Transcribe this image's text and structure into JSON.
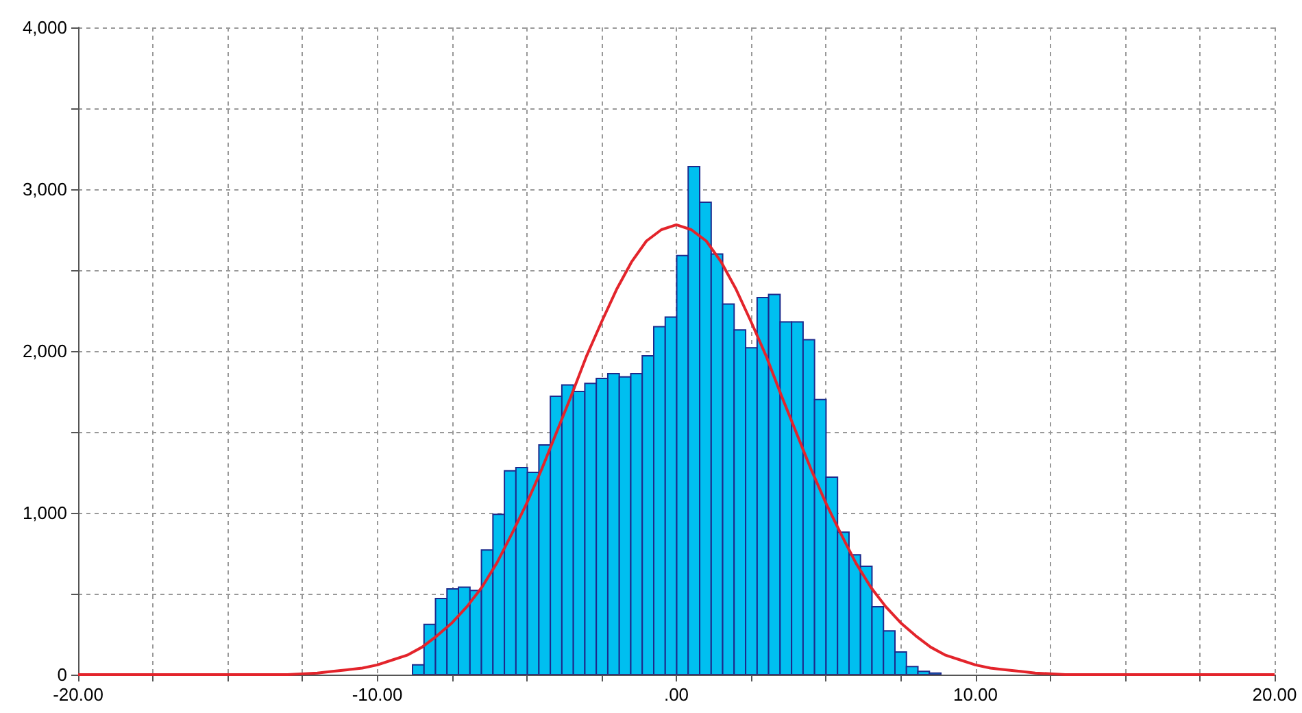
{
  "chart_data": {
    "type": "histogram",
    "series": [
      {
        "type": "histogram",
        "color": "#00bff0",
        "bins": [
          -8.82,
          -8.436,
          -8.052,
          -7.668,
          -7.284,
          -6.9,
          -6.516,
          -6.132,
          -5.748,
          -5.364,
          -4.98,
          -4.596,
          -4.212,
          -3.828,
          -3.444,
          -3.06,
          -2.676,
          -2.292,
          -1.908,
          -1.524,
          -1.14,
          -0.756,
          -0.372,
          0.012,
          0.396,
          0.78,
          1.164,
          1.548,
          1.932,
          2.316,
          2.7,
          3.084,
          3.468,
          3.852,
          4.236,
          4.62,
          5.004,
          5.388,
          5.772,
          6.156,
          6.54,
          6.924,
          7.308,
          7.692,
          8.076,
          8.46,
          8.844
        ],
        "values": [
          60,
          310,
          470,
          530,
          540,
          520,
          770,
          990,
          1260,
          1280,
          1250,
          1420,
          1720,
          1790,
          1750,
          1800,
          1830,
          1860,
          1840,
          1860,
          1970,
          2150,
          2210,
          2590,
          3140,
          2920,
          2600,
          2290,
          2130,
          2020,
          2330,
          2350,
          2180,
          2180,
          2070,
          1700,
          1220,
          880,
          740,
          670,
          420,
          270,
          140,
          50,
          20,
          10
        ]
      },
      {
        "type": "line",
        "color": "#e3242b",
        "x": [
          -20,
          -18,
          -16,
          -14,
          -13,
          -12,
          -11.5,
          -11,
          -10.5,
          -10,
          -9.5,
          -9,
          -8.5,
          -8,
          -7.5,
          -7,
          -6.5,
          -6,
          -5.5,
          -5,
          -4.5,
          -4,
          -3.5,
          -3,
          -2.5,
          -2,
          -1.5,
          -1,
          -0.5,
          0,
          0.5,
          1,
          1.5,
          2,
          2.5,
          3,
          3.5,
          4,
          4.5,
          5,
          5.5,
          6,
          6.5,
          7,
          7.5,
          8,
          8.5,
          9,
          9.5,
          10,
          10.5,
          11,
          11.5,
          12,
          13,
          14,
          16,
          18,
          20
        ],
        "values": [
          0,
          0,
          0,
          0,
          0,
          10,
          20,
          30,
          40,
          60,
          90,
          120,
          170,
          240,
          320,
          420,
          540,
          690,
          870,
          1060,
          1270,
          1500,
          1730,
          1970,
          2180,
          2380,
          2550,
          2680,
          2750,
          2780,
          2750,
          2680,
          2550,
          2380,
          2180,
          1970,
          1730,
          1500,
          1270,
          1060,
          870,
          690,
          540,
          420,
          320,
          240,
          170,
          120,
          90,
          60,
          40,
          30,
          20,
          10,
          0,
          0,
          0,
          0,
          0
        ]
      }
    ],
    "xlim": [
      -20,
      20
    ],
    "xticks": [
      {
        "value": -20,
        "label": "-20.00"
      },
      {
        "value": -17.5,
        "label": null
      },
      {
        "value": -15,
        "label": null
      },
      {
        "value": -12.5,
        "label": null
      },
      {
        "value": -10,
        "label": "-10.00"
      },
      {
        "value": -7.5,
        "label": null
      },
      {
        "value": -5,
        "label": null
      },
      {
        "value": -2.5,
        "label": null
      },
      {
        "value": 0,
        "label": ".00"
      },
      {
        "value": 2.5,
        "label": null
      },
      {
        "value": 5,
        "label": null
      },
      {
        "value": 7.5,
        "label": null
      },
      {
        "value": 10,
        "label": "10.00"
      },
      {
        "value": 12.5,
        "label": null
      },
      {
        "value": 15,
        "label": null
      },
      {
        "value": 17.5,
        "label": null
      },
      {
        "value": 20,
        "label": "20.00"
      }
    ],
    "ylim": [
      0,
      4000
    ],
    "yticks": [
      0,
      {
        "value": 500,
        "label": null
      },
      {
        "value": 1000,
        "label": "1,000"
      },
      {
        "value": 1500,
        "label": null
      },
      {
        "value": 2000,
        "label": "2,000"
      },
      {
        "value": 2500,
        "label": null
      },
      {
        "value": 3000,
        "label": "3,000"
      },
      {
        "value": 3500,
        "label": null
      },
      {
        "value": 4000,
        "label": "4,000"
      }
    ],
    "grid": true,
    "marker": "none"
  }
}
